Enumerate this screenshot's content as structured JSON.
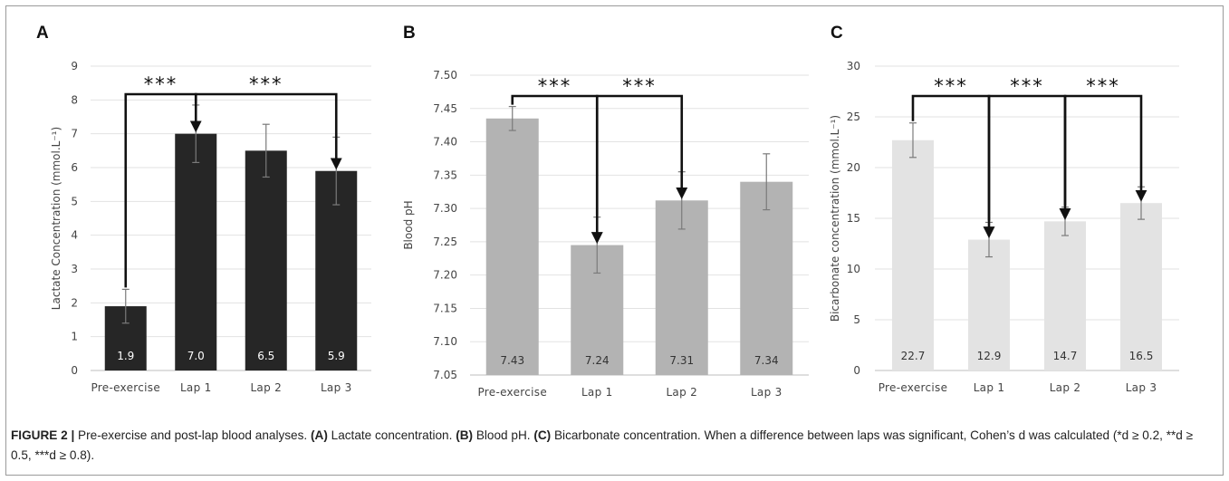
{
  "chart_data": [
    {
      "type": "bar",
      "panel": "A",
      "categories": [
        "Pre-exercise",
        "Lap 1",
        "Lap 2",
        "Lap 3"
      ],
      "values": [
        1.9,
        7.0,
        6.5,
        5.9
      ],
      "value_labels": [
        "1.9",
        "7.0",
        "6.5",
        "5.9"
      ],
      "error": [
        0.5,
        0.85,
        0.78,
        1.0
      ],
      "ylabel": "Lactate Concentration (mmol.L⁻¹)",
      "ylim": [
        0,
        9
      ],
      "yticks": [
        0,
        1,
        2,
        3,
        4,
        5,
        6,
        7,
        8,
        9
      ],
      "ytick_labels": [
        "0",
        "1",
        "2",
        "3",
        "4",
        "5",
        "6",
        "7",
        "8",
        "9"
      ],
      "bar_color": "#262626",
      "label_color": "#ffffff",
      "significance": [
        {
          "from": 0,
          "to": 1,
          "label": "***"
        },
        {
          "from": 1,
          "to": 3,
          "label": "***"
        }
      ]
    },
    {
      "type": "bar",
      "panel": "B",
      "categories": [
        "Pre-exercise",
        "Lap 1",
        "Lap 2",
        "Lap 3"
      ],
      "values": [
        7.435,
        7.245,
        7.312,
        7.34
      ],
      "value_labels": [
        "7.43",
        "7.24",
        "7.31",
        "7.34"
      ],
      "error": [
        0.018,
        0.042,
        0.043,
        0.042
      ],
      "ylabel": "Blood pH",
      "ylim": [
        7.05,
        7.5
      ],
      "yticks": [
        7.05,
        7.1,
        7.15,
        7.2,
        7.25,
        7.3,
        7.35,
        7.4,
        7.45,
        7.5
      ],
      "ytick_labels": [
        "7.05",
        "7.10",
        "7.15",
        "7.20",
        "7.25",
        "7.30",
        "7.35",
        "7.40",
        "7.45",
        "7.50"
      ],
      "bar_color": "#b3b3b3",
      "label_color": "#333333",
      "significance": [
        {
          "from": 0,
          "to": 1,
          "label": "***"
        },
        {
          "from": 1,
          "to": 2,
          "label": "***"
        }
      ]
    },
    {
      "type": "bar",
      "panel": "C",
      "categories": [
        "Pre-exercise",
        "Lap 1",
        "Lap 2",
        "Lap 3"
      ],
      "values": [
        22.7,
        12.9,
        14.7,
        16.5
      ],
      "value_labels": [
        "22.7",
        "12.9",
        "14.7",
        "16.5"
      ],
      "error": [
        1.7,
        1.7,
        1.4,
        1.6
      ],
      "ylabel": "Bicarbonate concentration (mmol.L⁻¹)",
      "ylim": [
        0,
        30
      ],
      "yticks": [
        0,
        5,
        10,
        15,
        20,
        25,
        30
      ],
      "ytick_labels": [
        "0",
        "5",
        "10",
        "15",
        "20",
        "25",
        "30"
      ],
      "bar_color": "#e3e3e3",
      "label_color": "#333333",
      "significance": [
        {
          "from": 0,
          "to": 1,
          "label": "***"
        },
        {
          "from": 1,
          "to": 2,
          "label": "***"
        },
        {
          "from": 2,
          "to": 3,
          "label": "***"
        }
      ]
    }
  ],
  "caption": {
    "figure_label": "FIGURE 2 |",
    "intro": " Pre-exercise and post-lap blood analyses. ",
    "a_label": "(A)",
    "a_text": " Lactate concentration. ",
    "b_label": "(B)",
    "b_text": " Blood pH. ",
    "c_label": "(C)",
    "c_text": " Bicarbonate concentration. When a difference between laps was significant, Cohen’s d was calculated (*d ≥ 0.2, **d ≥ 0.5, ***d ≥ 0.8)."
  }
}
